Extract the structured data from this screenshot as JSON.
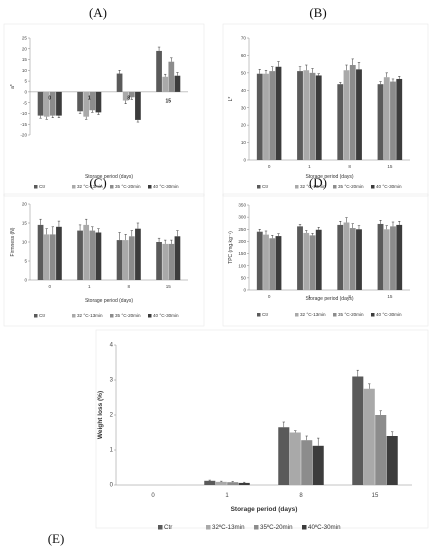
{
  "legend_colors": [
    "#5a5a5a",
    "#a9a9a9",
    "#8c8c8c",
    "#3c3c3c"
  ],
  "chart_data": [
    {
      "panel": "(A)",
      "type": "bar",
      "ylabel": "a*",
      "xlabel": "Storage period (days)",
      "categories": [
        "0",
        "1",
        "8",
        "15"
      ],
      "category_labels_inside": true,
      "ylim": [
        -20,
        25
      ],
      "yticks": [
        -20,
        -15,
        -10,
        -5,
        0,
        5,
        10,
        15,
        20,
        25
      ],
      "series": [
        {
          "name": "Ctr",
          "values": [
            -11,
            -9,
            8.5,
            19
          ]
        },
        {
          "name": "32 °C-13min",
          "values": [
            -11.5,
            -11.5,
            -4,
            7
          ]
        },
        {
          "name": "35 °C-20min",
          "values": [
            -11,
            -8.5,
            -2.5,
            14
          ]
        },
        {
          "name": "40 °C-30min",
          "values": [
            -11,
            -9.5,
            -13,
            7.5
          ]
        }
      ],
      "errors": [
        [
          1.2,
          1.0,
          1.5,
          1.8
        ],
        [
          1.2,
          1.2,
          1.5,
          1.2
        ],
        [
          1.0,
          1.0,
          1.0,
          1.8
        ],
        [
          1.0,
          1.0,
          1.0,
          1.5
        ]
      ]
    },
    {
      "panel": "(B)",
      "type": "bar",
      "ylabel": "L*",
      "xlabel": "Storage period (days)",
      "categories": [
        "0",
        "1",
        "8",
        "15"
      ],
      "ylim": [
        0,
        70
      ],
      "yticks": [
        0,
        10,
        20,
        30,
        40,
        50,
        60,
        70
      ],
      "series": [
        {
          "name": "Ctr",
          "values": [
            49.5,
            51,
            43.5,
            43.5
          ]
        },
        {
          "name": "32 °C-13min",
          "values": [
            49.5,
            51.5,
            51.5,
            47.5
          ]
        },
        {
          "name": "35 °C-20min",
          "values": [
            51,
            50,
            54.5,
            45
          ]
        },
        {
          "name": "40 °C-30min",
          "values": [
            53.5,
            48.5,
            52,
            46.5
          ]
        }
      ],
      "errors": [
        [
          2.5,
          2.5,
          1.0,
          1.5
        ],
        [
          2.0,
          3.0,
          3.0,
          2.5
        ],
        [
          2.5,
          2.5,
          3.5,
          1.5
        ],
        [
          3.0,
          1.0,
          4.0,
          1.5
        ]
      ]
    },
    {
      "panel": "(C)",
      "type": "bar",
      "ylabel": "Firmness (N)",
      "xlabel": "Storage period (days)",
      "categories": [
        "0",
        "1",
        "8",
        "15"
      ],
      "ylim": [
        0,
        20
      ],
      "yticks": [
        0,
        5,
        10,
        15,
        20
      ],
      "series": [
        {
          "name": "Ctr",
          "values": [
            14.5,
            13,
            10.5,
            10
          ]
        },
        {
          "name": "32 °C-13min",
          "values": [
            12,
            14.5,
            10.5,
            9.5
          ]
        },
        {
          "name": "35 °C-20min",
          "values": [
            12,
            13,
            11.5,
            9.5
          ]
        },
        {
          "name": "40 °C-30min",
          "values": [
            14,
            12.5,
            13.5,
            11.5
          ]
        }
      ],
      "errors": [
        [
          1.5,
          1.5,
          2.0,
          1.0
        ],
        [
          1.5,
          1.5,
          1.5,
          1.0
        ],
        [
          2.0,
          1.0,
          1.5,
          1.0
        ],
        [
          1.5,
          1.0,
          1.5,
          1.5
        ]
      ]
    },
    {
      "panel": "(D)",
      "type": "bar",
      "ylabel": "TPC (mg.kg⁻¹)",
      "xlabel": "Storage period (days)",
      "categories": [
        "0",
        "1",
        "8",
        "15"
      ],
      "ylim": [
        0,
        350
      ],
      "yticks": [
        0,
        50,
        100,
        150,
        200,
        250,
        300,
        350
      ],
      "series": [
        {
          "name": "Ctr",
          "values": [
            240,
            262,
            268,
            272
          ]
        },
        {
          "name": "32 °C-13min",
          "values": [
            228,
            235,
            278,
            250
          ]
        },
        {
          "name": "35 °C-20min",
          "values": [
            213,
            225,
            255,
            262
          ]
        },
        {
          "name": "40 °C-30min",
          "values": [
            222,
            248,
            250,
            268
          ]
        }
      ],
      "errors": [
        [
          10,
          8,
          15,
          15
        ],
        [
          15,
          10,
          20,
          15
        ],
        [
          12,
          8,
          18,
          18
        ],
        [
          10,
          10,
          15,
          15
        ]
      ]
    },
    {
      "panel": "(E)",
      "type": "bar",
      "ylabel": "Weight loss (%)",
      "xlabel": "Storage period (days)",
      "categories": [
        "0",
        "1",
        "8",
        "15"
      ],
      "ylim": [
        0,
        4
      ],
      "yticks": [
        0,
        1,
        2,
        3,
        4
      ],
      "series": [
        {
          "name": "Ctr",
          "values": [
            0,
            0.12,
            1.65,
            3.1
          ]
        },
        {
          "name": "32ºC-13min",
          "values": [
            0,
            0.09,
            1.5,
            2.75
          ]
        },
        {
          "name": "35ºC-20min",
          "values": [
            0,
            0.08,
            1.28,
            2.0
          ]
        },
        {
          "name": "40ºC-30min",
          "values": [
            0,
            0.06,
            1.12,
            1.4
          ]
        }
      ],
      "errors": [
        [
          0,
          0.02,
          0.15,
          0.18
        ],
        [
          0,
          0.02,
          0.05,
          0.14
        ],
        [
          0,
          0.02,
          0.12,
          0.12
        ],
        [
          0,
          0.02,
          0.22,
          0.12
        ]
      ]
    }
  ]
}
